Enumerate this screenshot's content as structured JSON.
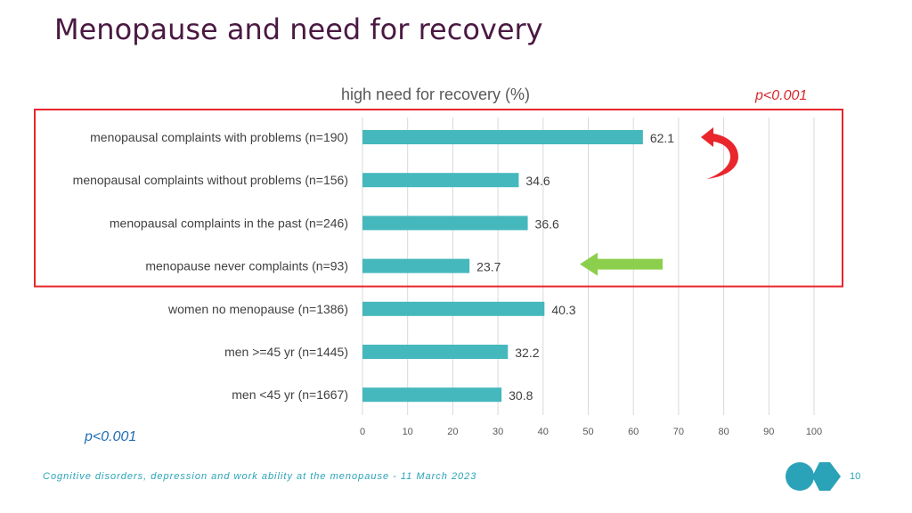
{
  "slide": {
    "title": "Menopause and need for recovery",
    "p_value_top": "p<0.001",
    "p_value_bottom": "p<0.001",
    "footer": "Cognitive disorders, depression and work ability at the menopause - 11 March 2023",
    "page_number": "10"
  },
  "colors": {
    "bar": "#45b8bd",
    "title": "#4a1942",
    "highlight_box": "#e8262c",
    "red_arrow": "#e8262c",
    "green_arrow": "#8ccf4d",
    "accent": "#2aa3b8"
  },
  "chart_data": {
    "type": "bar",
    "orientation": "horizontal",
    "title": "high need for recovery (%)",
    "categories": [
      "menopausal complaints with problems (n=190)",
      "menopausal complaints without problems (n=156)",
      "menopausal complaints in the past (n=246)",
      "menopause never complaints (n=93)",
      "women no menopause (n=1386)",
      "men >=45 yr (n=1445)",
      "men <45 yr (n=1667)"
    ],
    "values": [
      62.1,
      34.6,
      36.6,
      23.7,
      40.3,
      32.2,
      30.8
    ],
    "value_labels": [
      "62.1",
      "34.6",
      "36.6",
      "23.7",
      "40.3",
      "32.2",
      "30.8"
    ],
    "xlim": [
      0,
      100
    ],
    "xticks": [
      0,
      10,
      20,
      30,
      40,
      50,
      60,
      70,
      80,
      90,
      100
    ],
    "grid": "vertical",
    "highlighted_categories": [
      0,
      1,
      2,
      3
    ],
    "red_arrow_category": 0,
    "green_arrow_category": 3
  }
}
